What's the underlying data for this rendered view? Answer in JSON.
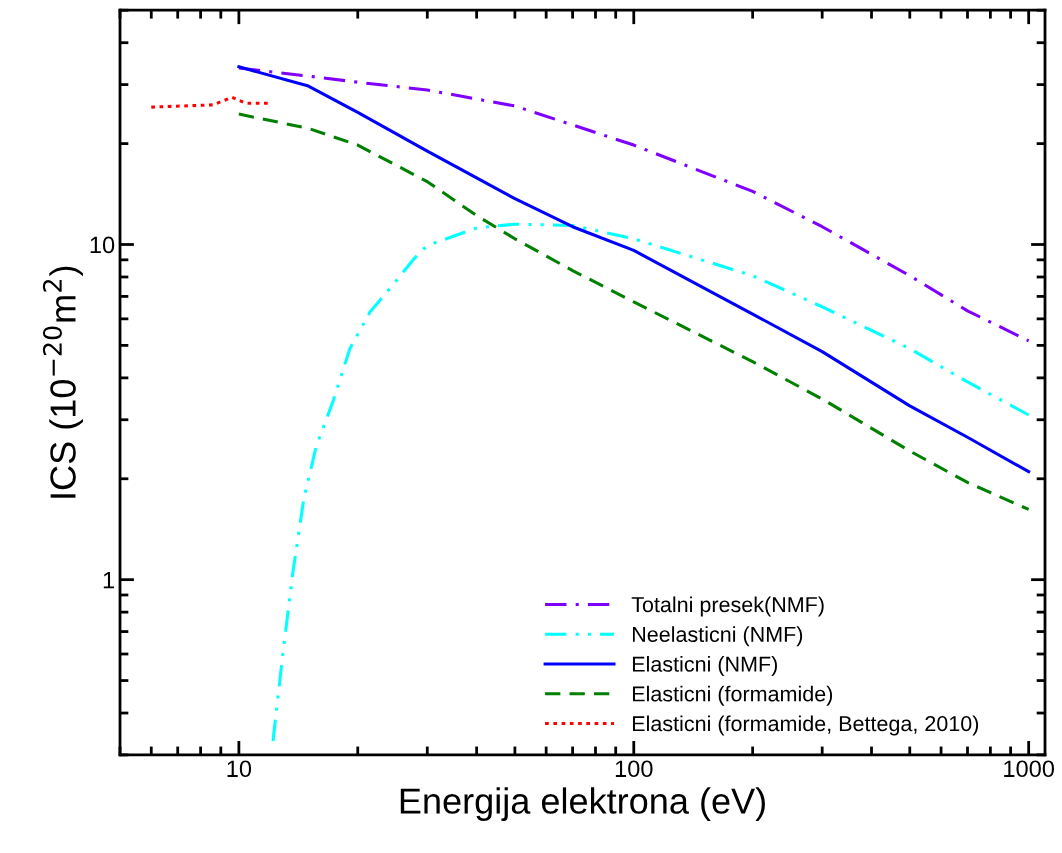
{
  "chart_data": {
    "type": "line",
    "xlabel": "Energija elektrona (eV)",
    "ylabel": "ICS (10$^{−20}$m$^{2}$)",
    "log": "xy",
    "xlim": [
      5,
      1100
    ],
    "ylim": [
      0.3,
      50
    ],
    "xticks": [
      10,
      100,
      1000
    ],
    "yticks": [
      1,
      10
    ],
    "grid": false,
    "legend": "bottom right",
    "marker": "none",
    "series": [
      {
        "name": "Totalni presek(NMF)",
        "color": "#8000ff",
        "line_style": "dashdot",
        "x": [
          10,
          15,
          20,
          30,
          50,
          100,
          200,
          300,
          500,
          700,
          1000
        ],
        "values": [
          33.6,
          31.8,
          30.5,
          28.9,
          25.9,
          19.8,
          14.4,
          11.3,
          8.07,
          6.34,
          5.16
        ]
      },
      {
        "name": "Neelasticni (NMF)",
        "color": "#00ffff",
        "line_style": "dashdotdot",
        "x": [
          12.2,
          12.9,
          13.7,
          14.6,
          15.7,
          17.4,
          19.1,
          21.5,
          24.7,
          27.8,
          30,
          40,
          50,
          70,
          100,
          200,
          300,
          500,
          700,
          1000
        ],
        "values": [
          0.33,
          0.59,
          1.05,
          1.74,
          2.5,
          3.46,
          4.89,
          6.3,
          7.64,
          9.08,
          9.93,
          11.2,
          11.5,
          11.4,
          10.4,
          8.07,
          6.52,
          4.89,
          3.89,
          3.1
        ]
      },
      {
        "name": "Elasticni (NMF)",
        "color": "#0000ff",
        "line_style": "solid",
        "x": [
          10,
          15,
          20,
          30,
          40,
          50,
          70,
          100,
          200,
          300,
          500,
          700,
          1000
        ],
        "values": [
          33.9,
          29.7,
          24.8,
          19.0,
          15.8,
          13.7,
          11.3,
          9.6,
          6.2,
          4.79,
          3.3,
          2.66,
          2.1
        ]
      },
      {
        "name": "Elasticni (formamide)",
        "color": "#008000",
        "line_style": "dashed",
        "x": [
          10,
          15,
          20,
          30,
          40,
          50,
          70,
          100,
          200,
          300,
          500,
          700,
          1000
        ],
        "values": [
          24.5,
          22.2,
          19.8,
          15.4,
          12.2,
          10.4,
          8.36,
          6.74,
          4.47,
          3.46,
          2.42,
          1.95,
          1.62
        ]
      },
      {
        "name": "Elasticni (formamide, Bettega, 2010)",
        "color": "#ff0000",
        "line_style": "dotted",
        "x": [
          6,
          8.6,
          9.1,
          9.6,
          10.4,
          12
        ],
        "values": [
          25.7,
          26.1,
          26.8,
          27.5,
          26.4,
          26.4
        ]
      }
    ]
  }
}
